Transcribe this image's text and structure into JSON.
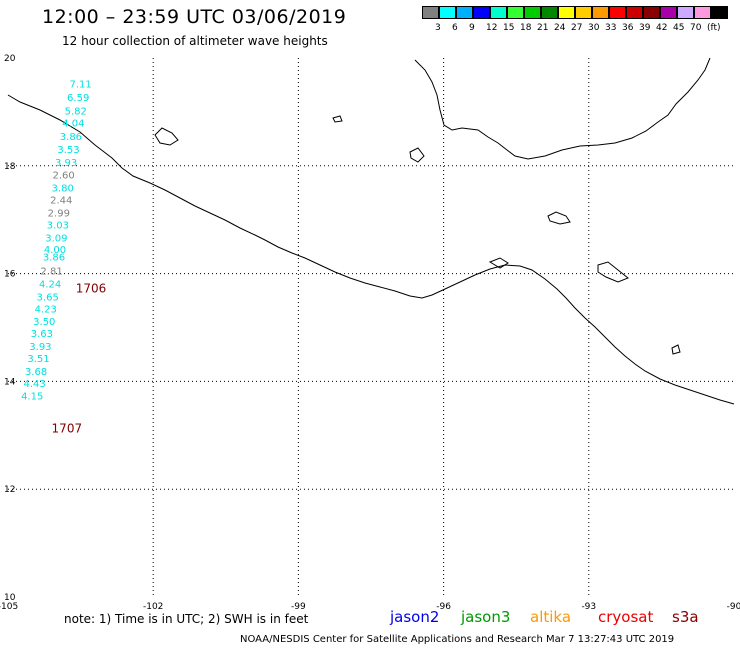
{
  "header": {
    "title": "12:00 – 23:59 UTC 03/06/2019",
    "subtitle": "12 hour collection of altimeter wave heights"
  },
  "scale": {
    "colors": [
      "#808080",
      "#00ffff",
      "#00b0ff",
      "#0000ff",
      "#00ffcc",
      "#33ff33",
      "#00cc00",
      "#008800",
      "#ffff00",
      "#ffcc00",
      "#ff9900",
      "#ff0000",
      "#cc0000",
      "#880000",
      "#aa00aa",
      "#ccaaff",
      "#ff99dd",
      "#000000"
    ],
    "labels": [
      "3",
      "6",
      "9",
      "12",
      "15",
      "18",
      "21",
      "24",
      "27",
      "30",
      "33",
      "36",
      "39",
      "42",
      "45",
      "70",
      "(ft)"
    ]
  },
  "axes": {
    "x_ticks": [
      "-105",
      "-102",
      "-99",
      "-96",
      "-93",
      "-90"
    ],
    "y_ticks": [
      "20",
      "18",
      "16",
      "14",
      "12",
      "10"
    ]
  },
  "map_data": {
    "lon_range": [
      -105,
      -90
    ],
    "lat_range": [
      10,
      20
    ],
    "time_labels": [
      {
        "text": "1706",
        "lon": -103.6,
        "lat": 15.65
      },
      {
        "text": "1707",
        "lon": -104.1,
        "lat": 13.05
      }
    ],
    "wave_heights": [
      {
        "text": "7.11",
        "lon": -103.5,
        "lat": 19.45,
        "color": "#00e0e0"
      },
      {
        "text": "6.59",
        "lon": -103.55,
        "lat": 19.2,
        "color": "#00e0e0"
      },
      {
        "text": "5.82",
        "lon": -103.6,
        "lat": 18.95,
        "color": "#00e0e0"
      },
      {
        "text": "4.04",
        "lon": -103.65,
        "lat": 18.73,
        "color": "#00e0e0"
      },
      {
        "text": "3.86",
        "lon": -103.7,
        "lat": 18.48,
        "color": "#00e0e0"
      },
      {
        "text": "3.53",
        "lon": -103.75,
        "lat": 18.24,
        "color": "#00e0e0"
      },
      {
        "text": "3.93",
        "lon": -103.8,
        "lat": 18.0,
        "color": "#00e0e0"
      },
      {
        "text": "2.60",
        "lon": -103.85,
        "lat": 17.76,
        "color": "#808080"
      },
      {
        "text": "3.80",
        "lon": -103.87,
        "lat": 17.52,
        "color": "#00e0e0"
      },
      {
        "text": "2.44",
        "lon": -103.9,
        "lat": 17.3,
        "color": "#808080"
      },
      {
        "text": "2.99",
        "lon": -103.95,
        "lat": 17.06,
        "color": "#808080"
      },
      {
        "text": "3.03",
        "lon": -103.97,
        "lat": 16.84,
        "color": "#00e0e0"
      },
      {
        "text": "3.09",
        "lon": -104.0,
        "lat": 16.6,
        "color": "#00e0e0"
      },
      {
        "text": "4.00",
        "lon": -104.03,
        "lat": 16.38,
        "color": "#00e0e0"
      },
      {
        "text": "3.86",
        "lon": -104.05,
        "lat": 16.24,
        "color": "#00e0e0"
      },
      {
        "text": "2.81",
        "lon": -104.1,
        "lat": 15.98,
        "color": "#808080"
      },
      {
        "text": "4.24",
        "lon": -104.13,
        "lat": 15.74,
        "color": "#00e0e0"
      },
      {
        "text": "3.65",
        "lon": -104.18,
        "lat": 15.5,
        "color": "#00e0e0"
      },
      {
        "text": "4.23",
        "lon": -104.22,
        "lat": 15.28,
        "color": "#00e0e0"
      },
      {
        "text": "3.50",
        "lon": -104.25,
        "lat": 15.05,
        "color": "#00e0e0"
      },
      {
        "text": "3.63",
        "lon": -104.3,
        "lat": 14.82,
        "color": "#00e0e0"
      },
      {
        "text": "3.93",
        "lon": -104.33,
        "lat": 14.58,
        "color": "#00e0e0"
      },
      {
        "text": "3.51",
        "lon": -104.37,
        "lat": 14.36,
        "color": "#00e0e0"
      },
      {
        "text": "3.68",
        "lon": -104.42,
        "lat": 14.12,
        "color": "#00e0e0"
      },
      {
        "text": "4.43",
        "lon": -104.45,
        "lat": 13.9,
        "color": "#00e0e0"
      },
      {
        "text": "4.15",
        "lon": -104.5,
        "lat": 13.66,
        "color": "#00e0e0"
      }
    ]
  },
  "footer": {
    "note": "note: 1) Time is in UTC; 2) SWH is in feet",
    "satellites": [
      {
        "name": "jason2",
        "color": "#0000ee"
      },
      {
        "name": "jason3",
        "color": "#009900"
      },
      {
        "name": "altika",
        "color": "#ff9900"
      },
      {
        "name": "cryosat",
        "color": "#ee0000"
      },
      {
        "name": "s3a",
        "color": "#880000"
      }
    ],
    "credit": "NOAA/NESDIS Center for Satellite Applications and Research   Mar  7 13:27:43 UTC 2019"
  }
}
